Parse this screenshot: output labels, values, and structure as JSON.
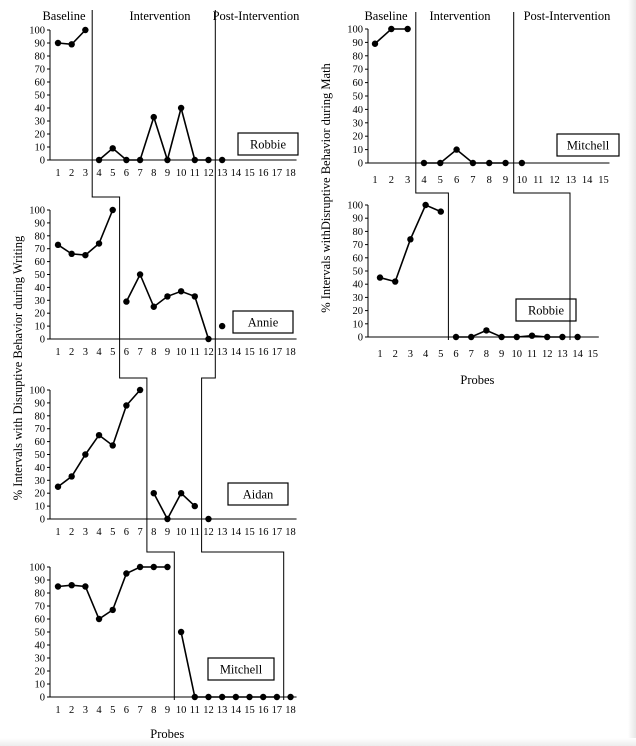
{
  "chart_data": [
    {
      "type": "line",
      "group": "writing",
      "student": "Robbie",
      "x_ticks": [
        1,
        2,
        3,
        4,
        5,
        6,
        7,
        8,
        9,
        10,
        11,
        12,
        13,
        14,
        15,
        16,
        17,
        18
      ],
      "ylim": [
        0,
        100
      ],
      "y_ticks": [
        0,
        10,
        20,
        30,
        40,
        50,
        60,
        70,
        80,
        90,
        100
      ],
      "phase_labels": [
        "Baseline",
        "Intervention",
        "Post-Intervention"
      ],
      "phases": {
        "baseline": [
          [
            1,
            90
          ],
          [
            2,
            89
          ],
          [
            3,
            100
          ]
        ],
        "intervention": [
          [
            4,
            0
          ],
          [
            5,
            9
          ],
          [
            6,
            0
          ],
          [
            7,
            0
          ],
          [
            8,
            33
          ],
          [
            9,
            0
          ],
          [
            10,
            40
          ],
          [
            11,
            0
          ],
          [
            12,
            0
          ]
        ],
        "post": [
          [
            13,
            0
          ]
        ]
      }
    },
    {
      "type": "line",
      "group": "writing",
      "student": "Annie",
      "x_ticks": [
        1,
        2,
        3,
        4,
        5,
        6,
        7,
        8,
        9,
        10,
        11,
        12,
        13,
        14,
        15,
        16,
        17,
        18
      ],
      "ylim": [
        0,
        100
      ],
      "y_ticks": [
        0,
        10,
        20,
        30,
        40,
        50,
        60,
        70,
        80,
        90,
        100
      ],
      "phases": {
        "baseline": [
          [
            1,
            73
          ],
          [
            2,
            66
          ],
          [
            3,
            65
          ],
          [
            4,
            74
          ],
          [
            5,
            100
          ]
        ],
        "intervention": [
          [
            6,
            29
          ],
          [
            7,
            50
          ],
          [
            8,
            25
          ],
          [
            9,
            33
          ],
          [
            10,
            37
          ],
          [
            11,
            33
          ],
          [
            12,
            0
          ]
        ],
        "post": [
          [
            13,
            10
          ]
        ]
      }
    },
    {
      "type": "line",
      "group": "writing",
      "student": "Aidan",
      "x_ticks": [
        1,
        2,
        3,
        4,
        5,
        6,
        7,
        8,
        9,
        10,
        11,
        12,
        13,
        14,
        15,
        16,
        17,
        18
      ],
      "ylim": [
        0,
        100
      ],
      "y_ticks": [
        0,
        10,
        20,
        30,
        40,
        50,
        60,
        70,
        80,
        90,
        100
      ],
      "phases": {
        "baseline": [
          [
            1,
            25
          ],
          [
            2,
            33
          ],
          [
            3,
            50
          ],
          [
            4,
            65
          ],
          [
            5,
            57
          ],
          [
            6,
            88
          ],
          [
            7,
            100
          ]
        ],
        "intervention": [
          [
            8,
            20
          ],
          [
            9,
            0
          ],
          [
            10,
            20
          ],
          [
            11,
            10
          ]
        ],
        "post": [
          [
            12,
            0
          ]
        ]
      }
    },
    {
      "type": "line",
      "group": "writing",
      "student": "Mitchell",
      "x_ticks": [
        1,
        2,
        3,
        4,
        5,
        6,
        7,
        8,
        9,
        10,
        11,
        12,
        13,
        14,
        15,
        16,
        17,
        18
      ],
      "ylim": [
        0,
        100
      ],
      "y_ticks": [
        0,
        10,
        20,
        30,
        40,
        50,
        60,
        70,
        80,
        90,
        100
      ],
      "xlabel": "Probes",
      "phases": {
        "baseline": [
          [
            1,
            85
          ],
          [
            2,
            86
          ],
          [
            3,
            85
          ],
          [
            4,
            60
          ],
          [
            5,
            67
          ],
          [
            6,
            95
          ],
          [
            7,
            100
          ],
          [
            8,
            100
          ],
          [
            9,
            100
          ]
        ],
        "intervention": [
          [
            10,
            50
          ],
          [
            11,
            0
          ],
          [
            12,
            0
          ],
          [
            13,
            0
          ],
          [
            14,
            0
          ],
          [
            15,
            0
          ],
          [
            16,
            0
          ],
          [
            17,
            0
          ]
        ],
        "post": [
          [
            18,
            0
          ]
        ]
      }
    },
    {
      "type": "line",
      "group": "math",
      "student": "Mitchell",
      "x_ticks": [
        1,
        2,
        3,
        4,
        5,
        6,
        7,
        8,
        9,
        10,
        11,
        12,
        13,
        14,
        15
      ],
      "ylim": [
        0,
        100
      ],
      "y_ticks": [
        0,
        10,
        20,
        30,
        40,
        50,
        60,
        70,
        80,
        90,
        100
      ],
      "phase_labels": [
        "Baseline",
        "Intervention",
        "Post-Intervention"
      ],
      "phases": {
        "baseline": [
          [
            1,
            89
          ],
          [
            2,
            100
          ],
          [
            3,
            100
          ]
        ],
        "intervention": [
          [
            4,
            0
          ],
          [
            5,
            0
          ],
          [
            6,
            10
          ],
          [
            7,
            0
          ],
          [
            8,
            0
          ],
          [
            9,
            0
          ]
        ],
        "post": [
          [
            10,
            0
          ]
        ]
      }
    },
    {
      "type": "line",
      "group": "math",
      "student": "Robbie",
      "x_ticks": [
        1,
        2,
        3,
        4,
        5,
        6,
        7,
        8,
        9,
        10,
        11,
        12,
        13,
        14,
        15
      ],
      "ylim": [
        0,
        100
      ],
      "y_ticks": [
        0,
        10,
        20,
        30,
        40,
        50,
        60,
        70,
        80,
        90,
        100
      ],
      "xlabel": "Probes",
      "phases": {
        "baseline": [
          [
            1,
            45
          ],
          [
            2,
            42
          ],
          [
            3,
            74
          ],
          [
            4,
            100
          ],
          [
            5,
            95
          ]
        ],
        "intervention": [
          [
            6,
            0
          ],
          [
            7,
            0
          ],
          [
            8,
            5
          ],
          [
            9,
            0
          ],
          [
            10,
            0
          ],
          [
            11,
            1
          ],
          [
            12,
            0
          ],
          [
            13,
            0
          ]
        ],
        "post": [
          [
            14,
            0
          ]
        ]
      }
    }
  ],
  "ylabel_writing": "% Intervals with Disruptive Behavior during Writing",
  "ylabel_math": "% Intervals withDisruptive Behavior during Math"
}
